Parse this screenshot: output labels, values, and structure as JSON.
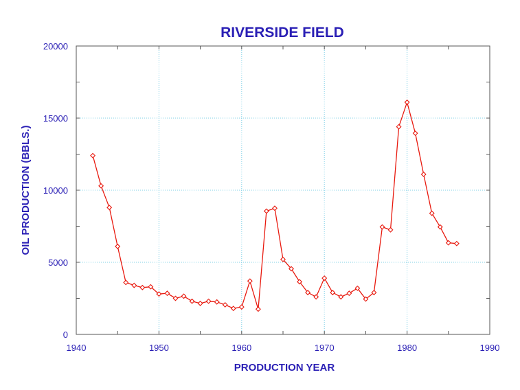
{
  "chart_data": {
    "type": "line",
    "title": "RIVERSIDE FIELD",
    "xlabel": "PRODUCTION YEAR",
    "ylabel": "OIL PRODUCTION (BBLS.)",
    "xlim": [
      1940,
      1990
    ],
    "ylim": [
      0,
      20000
    ],
    "x_ticks": [
      "1940",
      "1950",
      "1960",
      "1970",
      "1980",
      "1990"
    ],
    "y_ticks": [
      "0",
      "5000",
      "10000",
      "15000",
      "20000"
    ],
    "grid": true,
    "series": [
      {
        "x": [
          1942,
          1943,
          1944,
          1945,
          1946,
          1947,
          1948,
          1949,
          1950,
          1951,
          1952,
          1953,
          1954,
          1955,
          1956,
          1957,
          1958,
          1959,
          1960,
          1961,
          1962,
          1963,
          1964,
          1965,
          1966,
          1967,
          1968,
          1969,
          1970,
          1971,
          1972,
          1973,
          1974,
          1975,
          1976,
          1977,
          1978,
          1979,
          1980,
          1981,
          1982,
          1983,
          1984,
          1985,
          1986
        ],
        "values": [
          12400,
          10300,
          8800,
          6100,
          3600,
          3400,
          3250,
          3300,
          2800,
          2850,
          2500,
          2650,
          2300,
          2150,
          2300,
          2250,
          2050,
          1800,
          1900,
          3700,
          1750,
          8550,
          8750,
          5200,
          4550,
          3650,
          2900,
          2600,
          3900,
          2900,
          2600,
          2850,
          3200,
          2450,
          2900,
          7450,
          7250,
          14400,
          16100,
          13950,
          11100,
          8400,
          7450,
          6350,
          6300
        ]
      }
    ],
    "colors": {
      "text": "#2a1fb5",
      "line": "#e8190e",
      "grid": "#7fd0e6",
      "axis": "#555555"
    }
  }
}
